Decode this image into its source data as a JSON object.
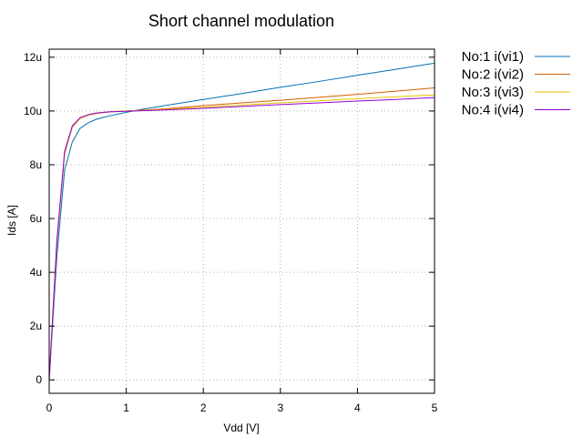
{
  "chart_data": {
    "type": "line",
    "title": "Short channel modulation",
    "xlabel": "Vdd [V]",
    "ylabel": "Ids [A]",
    "xlim": [
      0,
      5
    ],
    "ylim": [
      -0.5,
      12.3
    ],
    "x_ticks": [
      0,
      1,
      2,
      3,
      4,
      5
    ],
    "x_tick_labels": [
      "0",
      "1",
      "2",
      "3",
      "4",
      "5"
    ],
    "y_ticks": [
      0,
      2,
      4,
      6,
      8,
      10,
      12
    ],
    "y_tick_labels": [
      "0",
      "2u",
      "4u",
      "6u",
      "8u",
      "10u",
      "12u"
    ],
    "y_unit": "uA",
    "grid": true,
    "legend_position": "outside-right",
    "x": [
      0,
      0.1,
      0.2,
      0.3,
      0.4,
      0.5,
      0.6,
      0.7,
      0.8,
      1.0,
      1.2,
      1.5,
      2.0,
      2.5,
      3.0,
      3.5,
      4.0,
      4.5,
      5.0
    ],
    "series": [
      {
        "name": "No:1 i(vi1)",
        "color": "#0072b2",
        "values": [
          0,
          4.6,
          7.8,
          8.85,
          9.35,
          9.55,
          9.68,
          9.76,
          9.83,
          9.95,
          10.06,
          10.2,
          10.43,
          10.65,
          10.88,
          11.1,
          11.33,
          11.55,
          11.78
        ]
      },
      {
        "name": "No:2 i(vi2)",
        "color": "#d55e00",
        "values": [
          0,
          5.1,
          8.4,
          9.4,
          9.72,
          9.84,
          9.9,
          9.94,
          9.97,
          10.0,
          10.03,
          10.08,
          10.2,
          10.3,
          10.4,
          10.51,
          10.62,
          10.74,
          10.86
        ]
      },
      {
        "name": "No:3 i(vi3)",
        "color": "#e6c200",
        "values": [
          0,
          5.15,
          8.45,
          9.42,
          9.73,
          9.85,
          9.91,
          9.95,
          9.97,
          10.0,
          10.02,
          10.06,
          10.14,
          10.22,
          10.3,
          10.38,
          10.46,
          10.53,
          10.6
        ]
      },
      {
        "name": "No:4 i(vi4)",
        "color": "#9400d3",
        "values": [
          0,
          5.2,
          8.5,
          9.45,
          9.75,
          9.86,
          9.92,
          9.95,
          9.97,
          9.99,
          10.01,
          10.04,
          10.1,
          10.17,
          10.24,
          10.3,
          10.37,
          10.43,
          10.5
        ]
      }
    ]
  }
}
